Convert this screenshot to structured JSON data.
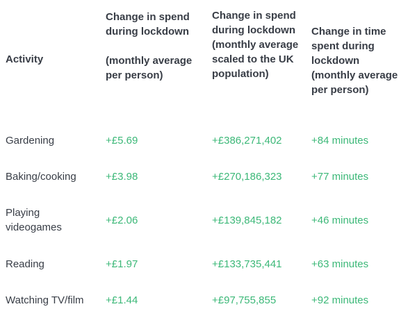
{
  "table": {
    "columns": [
      {
        "label": "Activity"
      },
      {
        "label": "Change in spend\nduring lockdown\n\n(monthly average\nper person)"
      },
      {
        "label": "Change in spend\nduring lockdown\n(monthly average\nscaled to the UK\npopulation)"
      },
      {
        "label": "Change in time\nspent during\nlockdown\n(monthly average\nper person)"
      }
    ],
    "rows": [
      {
        "activity": "Gardening",
        "spend_per_person": "+£5.69",
        "spend_uk_population": "+£386,271,402",
        "time_change": "+84 minutes"
      },
      {
        "activity": "Baking/cooking",
        "spend_per_person": "+£3.98",
        "spend_uk_population": "+£270,186,323",
        "time_change": "+77 minutes"
      },
      {
        "activity": "Playing\nvideogames",
        "spend_per_person": "+£2.06",
        "spend_uk_population": "+£139,845,182",
        "time_change": "+46 minutes"
      },
      {
        "activity": "Reading",
        "spend_per_person": "+£1.97",
        "spend_uk_population": "+£133,735,441",
        "time_change": "+63 minutes"
      },
      {
        "activity": "Watching TV/film",
        "spend_per_person": "+£1.44",
        "spend_uk_population": "+£97,755,855",
        "time_change": "+92 minutes"
      }
    ]
  },
  "colors": {
    "header_text": "#383d46",
    "value_green": "#3cb878",
    "background": "#ffffff"
  },
  "chart_data": {
    "type": "table",
    "title": "",
    "columns": [
      "Activity",
      "Change in spend during lockdown (monthly average per person)",
      "Change in spend during lockdown (monthly average scaled to the UK population)",
      "Change in time spent during lockdown (monthly average per person)"
    ],
    "rows": [
      [
        "Gardening",
        "+£5.69",
        "+£386,271,402",
        "+84 minutes"
      ],
      [
        "Baking/cooking",
        "+£3.98",
        "+£270,186,323",
        "+77 minutes"
      ],
      [
        "Playing videogames",
        "+£2.06",
        "+£139,845,182",
        "+46 minutes"
      ],
      [
        "Reading",
        "+£1.97",
        "+£133,735,441",
        "+63 minutes"
      ],
      [
        "Watching TV/film",
        "+£1.44",
        "+£97,755,855",
        "+92 minutes"
      ]
    ],
    "spend_per_person_gbp": [
      5.69,
      3.98,
      2.06,
      1.97,
      1.44
    ],
    "spend_uk_population_gbp": [
      386271402,
      270186323,
      139845182,
      133735441,
      97755855
    ],
    "time_change_minutes": [
      84,
      77,
      46,
      63,
      92
    ],
    "layout": {
      "gridlines": false,
      "value_color": "#3cb878"
    }
  }
}
